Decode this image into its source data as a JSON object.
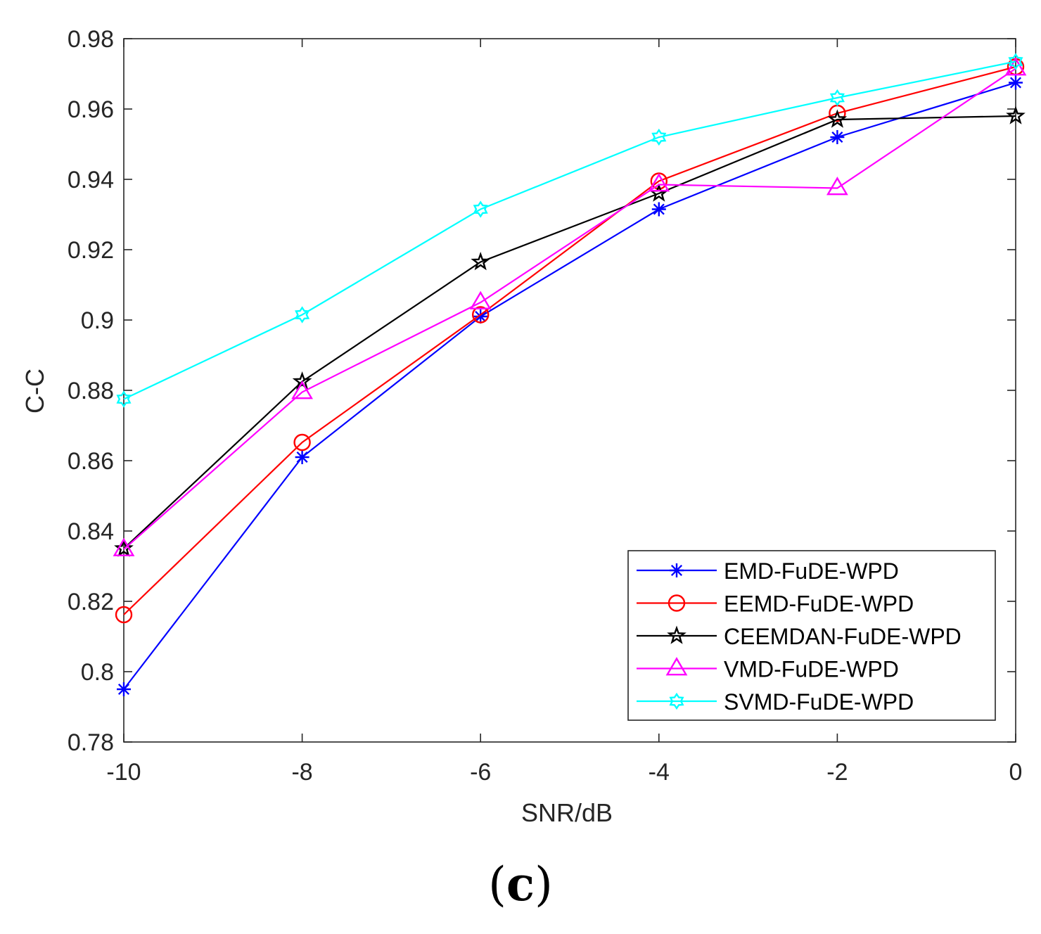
{
  "chart_data": {
    "type": "line",
    "xlabel": "SNR/dB",
    "ylabel": "C-C",
    "x": [
      -10,
      -8,
      -6,
      -4,
      -2,
      0
    ],
    "xlim": [
      -10,
      0
    ],
    "ylim": [
      0.78,
      0.98
    ],
    "xticks": [
      -10,
      -8,
      -6,
      -4,
      -2,
      0
    ],
    "xtick_labels": [
      "-10",
      "-8",
      "-6",
      "-4",
      "-2",
      "0"
    ],
    "yticks": [
      0.78,
      0.8,
      0.82,
      0.84,
      0.86,
      0.88,
      0.9,
      0.92,
      0.94,
      0.96,
      0.98
    ],
    "ytick_labels": [
      "0.78",
      "0.8",
      "0.82",
      "0.84",
      "0.86",
      "0.88",
      "0.9",
      "0.92",
      "0.94",
      "0.96",
      "0.98"
    ],
    "grid": false,
    "legend_position": "bottom-right",
    "series": [
      {
        "name": "EMD-FuDE-WPD",
        "color": "#0000ff",
        "marker": "asterisk",
        "values": [
          0.795,
          0.861,
          0.901,
          0.9315,
          0.952,
          0.9675
        ]
      },
      {
        "name": "EEMD-FuDE-WPD",
        "color": "#ff0000",
        "marker": "circle",
        "values": [
          0.8162,
          0.8652,
          0.9015,
          0.9395,
          0.9588,
          0.972
        ]
      },
      {
        "name": "CEEMDAN-FuDE-WPD",
        "color": "#000000",
        "marker": "pentagram",
        "values": [
          0.835,
          0.8825,
          0.9165,
          0.936,
          0.957,
          0.958
        ]
      },
      {
        "name": "VMD-FuDE-WPD",
        "color": "#ff00ff",
        "marker": "triangle",
        "values": [
          0.8348,
          0.8795,
          0.905,
          0.9385,
          0.9375,
          0.9715
        ]
      },
      {
        "name": "SVMD-FuDE-WPD",
        "color": "#00ffff",
        "marker": "hexagram",
        "values": [
          0.8775,
          0.9015,
          0.9315,
          0.952,
          0.9632,
          0.9735
        ]
      }
    ]
  },
  "caption": {
    "open": "(",
    "letter": "c",
    "close": ")"
  }
}
